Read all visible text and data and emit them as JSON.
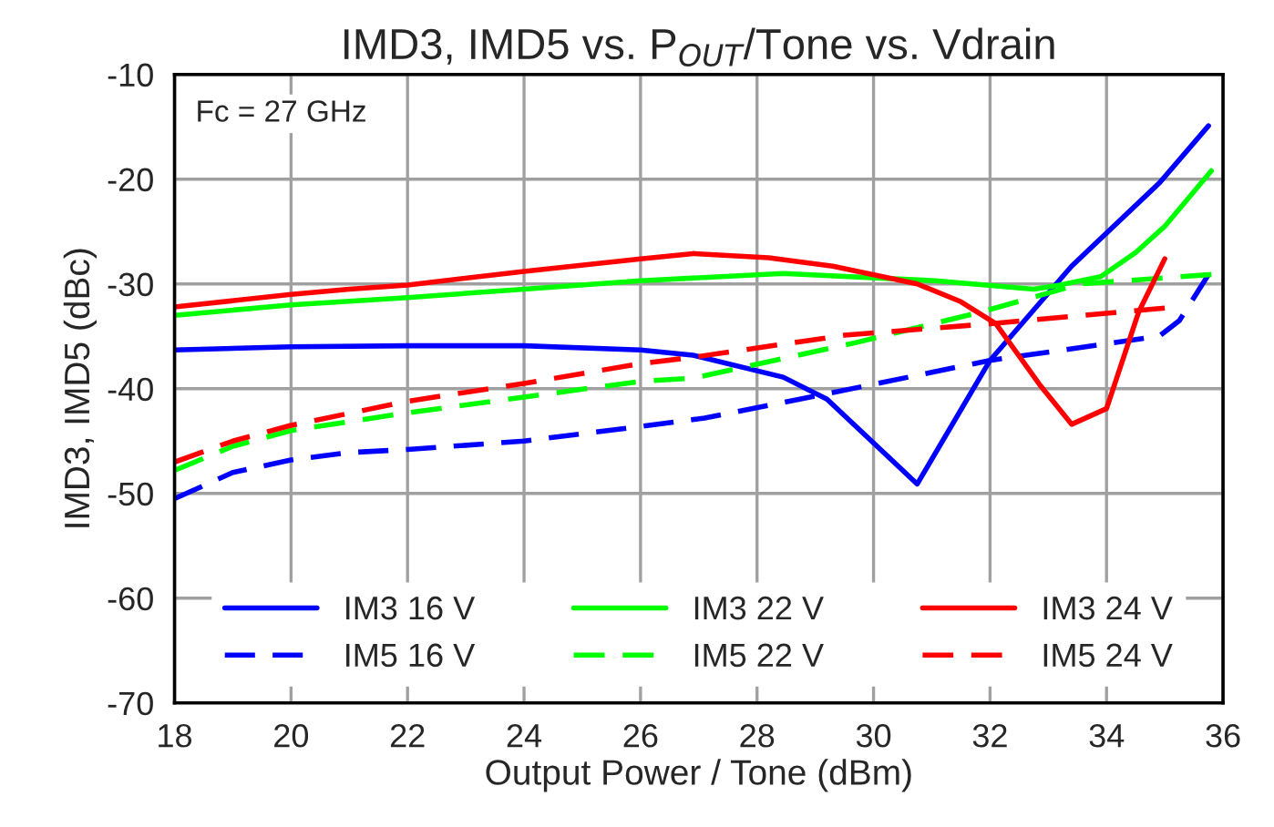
{
  "chart_data": {
    "type": "line",
    "title": "IMD3, IMD5 vs. P$_{OUT}$/Tone vs. Vdrain",
    "xlabel": "Output Power / Tone (dBm)",
    "ylabel": "IMD3, IMD5 (dBc)",
    "annotations": [
      "Fc = 27 GHz"
    ],
    "xlim": [
      18,
      36
    ],
    "xticks": [
      18,
      20,
      22,
      24,
      26,
      28,
      30,
      32,
      34,
      36
    ],
    "ylim": [
      -70,
      -10
    ],
    "yticks": [
      -70,
      -60,
      -50,
      -40,
      -30,
      -20,
      -10
    ],
    "grid": true,
    "legend": "bottom",
    "series": [
      {
        "name": "IM3 16 V",
        "color": "#0000ff",
        "line_style": "solid",
        "x": [
          18,
          20,
          22,
          24,
          26,
          26.9,
          28.45,
          29.2,
          30.75,
          32,
          33.4,
          34.9,
          35.75
        ],
        "values": [
          -36.3,
          -36,
          -35.9,
          -35.9,
          -36.3,
          -36.8,
          -38.9,
          -41,
          -49.1,
          -37.3,
          -28.3,
          -20.4,
          -14.9
        ]
      },
      {
        "name": "IM5 16 V",
        "color": "#0000ff",
        "line_style": "dashed",
        "x": [
          18,
          19,
          20,
          21,
          22,
          24,
          26,
          27.1,
          29.1,
          32,
          34.9,
          35.25,
          35.75
        ],
        "values": [
          -50.5,
          -48,
          -46.8,
          -46.1,
          -45.8,
          -45,
          -43.6,
          -42.8,
          -40.6,
          -37.3,
          -35,
          -33.5,
          -29.1
        ]
      },
      {
        "name": "IM3 22 V",
        "color": "#00ff00",
        "line_style": "solid",
        "x": [
          18,
          20,
          22,
          24,
          26,
          28.45,
          31.06,
          32.75,
          33.2,
          33.9,
          34.5,
          35,
          35.8
        ],
        "values": [
          -33,
          -32,
          -31.3,
          -30.5,
          -29.7,
          -29,
          -29.7,
          -30.5,
          -30.1,
          -29.3,
          -27,
          -24.5,
          -19.2
        ]
      },
      {
        "name": "IM5 22 V",
        "color": "#00ff00",
        "line_style": "dashed",
        "x": [
          18,
          19,
          20,
          22,
          24,
          26,
          26.9,
          29.7,
          31.9,
          33.55,
          35.8
        ],
        "values": [
          -47.8,
          -45.5,
          -44,
          -42.3,
          -40.8,
          -39.3,
          -39,
          -35.6,
          -32.6,
          -30,
          -29.1
        ]
      },
      {
        "name": "IM3 24 V",
        "color": "#ff0000",
        "line_style": "solid",
        "x": [
          18,
          20,
          21,
          22,
          24,
          26,
          26.9,
          28.2,
          29.3,
          30.75,
          31.5,
          32.1,
          32.85,
          33.4,
          34,
          34.55,
          35
        ],
        "values": [
          -32.2,
          -31,
          -30.5,
          -30.1,
          -28.8,
          -27.6,
          -27.1,
          -27.5,
          -28.3,
          -30,
          -31.7,
          -33.8,
          -39.6,
          -43.4,
          -41.9,
          -32.7,
          -27.6
        ]
      },
      {
        "name": "IM5 24 V",
        "color": "#ff0000",
        "line_style": "dashed",
        "x": [
          18,
          19,
          20,
          22,
          24,
          26,
          26.9,
          29.5,
          32,
          35
        ],
        "values": [
          -47,
          -45,
          -43.5,
          -41.2,
          -39.5,
          -37.6,
          -37,
          -34.9,
          -33.8,
          -32.3
        ]
      }
    ]
  }
}
